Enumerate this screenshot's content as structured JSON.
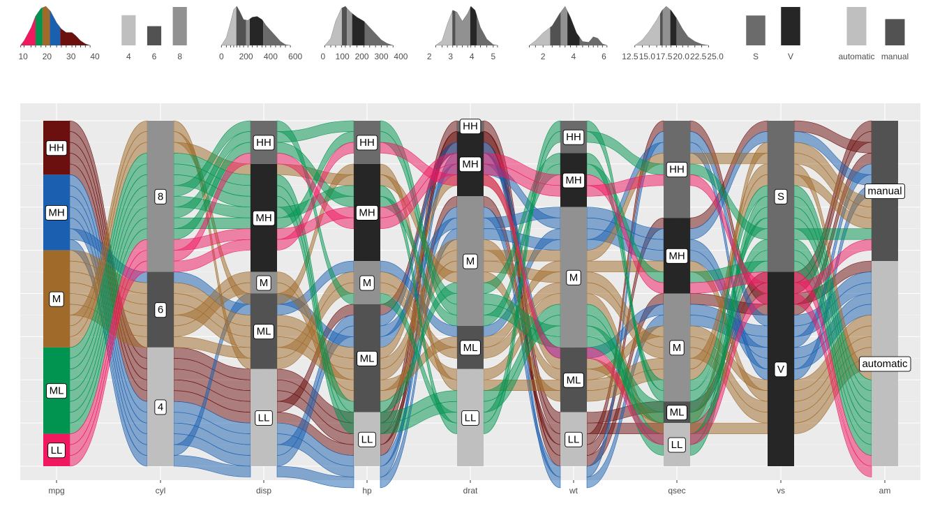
{
  "chart_data": {
    "type": "alluvial",
    "title": "",
    "xlabel": "",
    "ylabel": "",
    "grid": true,
    "background": "#ebebeb",
    "axes": [
      "mpg",
      "cyl",
      "disp",
      "hp",
      "drat",
      "wt",
      "qsec",
      "vs",
      "am"
    ],
    "flow_color_by": "mpg",
    "flow_palette": {
      "HH": "#6b0f0f",
      "MH": "#1a5fb0",
      "M": "#a06a2a",
      "ML": "#009450",
      "LL": "#f0185f"
    },
    "strata": [
      {
        "axis": "mpg",
        "levels": [
          {
            "label": "HH",
            "count": 5,
            "color": "#6b0f0f"
          },
          {
            "label": "MH",
            "count": 7,
            "color": "#1a5fb0"
          },
          {
            "label": "M",
            "count": 9,
            "color": "#a06a2a"
          },
          {
            "label": "ML",
            "count": 8,
            "color": "#009450"
          },
          {
            "label": "LL",
            "count": 3,
            "color": "#f0185f"
          }
        ]
      },
      {
        "axis": "cyl",
        "levels": [
          {
            "label": "8",
            "count": 14,
            "color": "#919191"
          },
          {
            "label": "6",
            "count": 7,
            "color": "#525252"
          },
          {
            "label": "4",
            "count": 11,
            "color": "#bfbfbf"
          }
        ]
      },
      {
        "axis": "disp",
        "levels": [
          {
            "label": "HH",
            "count": 4,
            "color": "#6b6b6b"
          },
          {
            "label": "MH",
            "count": 10,
            "color": "#262626"
          },
          {
            "label": "M",
            "count": 2,
            "color": "#919191"
          },
          {
            "label": "ML",
            "count": 7,
            "color": "#525252"
          },
          {
            "label": "LL",
            "count": 9,
            "color": "#bfbfbf"
          }
        ]
      },
      {
        "axis": "hp",
        "levels": [
          {
            "label": "HH",
            "count": 4,
            "color": "#6b6b6b"
          },
          {
            "label": "MH",
            "count": 9,
            "color": "#262626"
          },
          {
            "label": "M",
            "count": 4,
            "color": "#919191"
          },
          {
            "label": "ML",
            "count": 10,
            "color": "#525252"
          },
          {
            "label": "LL",
            "count": 5,
            "color": "#bfbfbf"
          }
        ]
      },
      {
        "axis": "drat",
        "levels": [
          {
            "label": "HH",
            "count": 1,
            "color": "#6b6b6b"
          },
          {
            "label": "MH",
            "count": 6,
            "color": "#262626"
          },
          {
            "label": "M",
            "count": 12,
            "color": "#919191"
          },
          {
            "label": "ML",
            "count": 4,
            "color": "#525252"
          },
          {
            "label": "LL",
            "count": 9,
            "color": "#bfbfbf"
          }
        ]
      },
      {
        "axis": "wt",
        "levels": [
          {
            "label": "HH",
            "count": 3,
            "color": "#6b6b6b"
          },
          {
            "label": "MH",
            "count": 5,
            "color": "#262626"
          },
          {
            "label": "M",
            "count": 13,
            "color": "#919191"
          },
          {
            "label": "ML",
            "count": 6,
            "color": "#525252"
          },
          {
            "label": "LL",
            "count": 5,
            "color": "#bfbfbf"
          }
        ]
      },
      {
        "axis": "qsec",
        "levels": [
          {
            "label": "HH",
            "count": 9,
            "color": "#6b6b6b"
          },
          {
            "label": "MH",
            "count": 7,
            "color": "#262626"
          },
          {
            "label": "M",
            "count": 10,
            "color": "#919191"
          },
          {
            "label": "ML",
            "count": 2,
            "color": "#525252"
          },
          {
            "label": "LL",
            "count": 4,
            "color": "#bfbfbf"
          }
        ]
      },
      {
        "axis": "vs",
        "levels": [
          {
            "label": "S",
            "count": 14,
            "color": "#6b6b6b"
          },
          {
            "label": "V",
            "count": 18,
            "color": "#262626"
          }
        ]
      },
      {
        "axis": "am",
        "levels": [
          {
            "label": "manual",
            "count": 13,
            "color": "#525252"
          },
          {
            "label": "automatic",
            "count": 19,
            "color": "#bfbfbf"
          }
        ]
      }
    ],
    "marginal_plots": [
      {
        "variable": "mpg",
        "type": "density",
        "ticks": [
          "10",
          "20",
          "30",
          "40"
        ],
        "xlim": [
          5,
          40
        ],
        "tick_values": [
          10,
          20,
          30,
          40
        ],
        "bands": [
          {
            "to": 15.2,
            "color": "#f0185f"
          },
          {
            "to": 18.1,
            "color": "#009450"
          },
          {
            "to": 21.2,
            "color": "#a06a2a"
          },
          {
            "to": 25.5,
            "color": "#1a5fb0"
          },
          {
            "to": 34.5,
            "color": "#6b0f0f"
          }
        ],
        "density": [
          [
            9,
            0.01
          ],
          [
            10.4,
            0.12
          ],
          [
            13.3,
            0.45
          ],
          [
            15.2,
            0.75
          ],
          [
            17.5,
            0.95
          ],
          [
            19.5,
            1.0
          ],
          [
            21.4,
            0.88
          ],
          [
            24,
            0.58
          ],
          [
            26,
            0.42
          ],
          [
            28,
            0.33
          ],
          [
            30.4,
            0.33
          ],
          [
            32,
            0.25
          ],
          [
            34,
            0.12
          ],
          [
            36,
            0.04
          ],
          [
            38,
            0.0
          ]
        ]
      },
      {
        "variable": "cyl",
        "type": "bar",
        "ticks": [
          "4",
          "6",
          "8"
        ],
        "bars": [
          {
            "label": "4",
            "value": 11,
            "color": "#bfbfbf"
          },
          {
            "label": "6",
            "value": 7,
            "color": "#525252"
          },
          {
            "label": "8",
            "value": 14,
            "color": "#919191"
          }
        ]
      },
      {
        "variable": "disp",
        "type": "density",
        "ticks": [
          "0",
          "200",
          "400",
          "600"
        ],
        "xlim": [
          -30,
          650
        ],
        "tick_values": [
          0,
          200,
          400,
          600
        ],
        "bands": [
          {
            "to": 121,
            "color": "#bfbfbf"
          },
          {
            "to": 200,
            "color": "#525252"
          },
          {
            "to": 230,
            "color": "#919191"
          },
          {
            "to": 340,
            "color": "#262626"
          },
          {
            "to": 520,
            "color": "#6b6b6b"
          }
        ],
        "density": [
          [
            0,
            0.0
          ],
          [
            40,
            0.2
          ],
          [
            75,
            0.6
          ],
          [
            100,
            0.92
          ],
          [
            125,
            1.0
          ],
          [
            150,
            0.86
          ],
          [
            180,
            0.66
          ],
          [
            215,
            0.64
          ],
          [
            250,
            0.72
          ],
          [
            290,
            0.74
          ],
          [
            330,
            0.66
          ],
          [
            360,
            0.52
          ],
          [
            400,
            0.38
          ],
          [
            440,
            0.24
          ],
          [
            480,
            0.1
          ],
          [
            520,
            0.02
          ],
          [
            560,
            0.0
          ]
        ]
      },
      {
        "variable": "hp",
        "type": "density",
        "ticks": [
          "0",
          "100",
          "200",
          "300",
          "400"
        ],
        "xlim": [
          -10,
          420
        ],
        "tick_values": [
          0,
          100,
          200,
          300,
          400
        ],
        "bands": [
          {
            "to": 97,
            "color": "#bfbfbf"
          },
          {
            "to": 123,
            "color": "#525252"
          },
          {
            "to": 150,
            "color": "#919191"
          },
          {
            "to": 215,
            "color": "#262626"
          },
          {
            "to": 335,
            "color": "#6b6b6b"
          }
        ],
        "density": [
          [
            10,
            0.0
          ],
          [
            40,
            0.18
          ],
          [
            65,
            0.62
          ],
          [
            95,
            0.95
          ],
          [
            115,
            1.0
          ],
          [
            140,
            0.86
          ],
          [
            175,
            0.72
          ],
          [
            210,
            0.62
          ],
          [
            240,
            0.46
          ],
          [
            270,
            0.3
          ],
          [
            300,
            0.14
          ],
          [
            330,
            0.05
          ],
          [
            360,
            0.0
          ]
        ]
      },
      {
        "variable": "drat",
        "type": "density",
        "ticks": [
          "2",
          "3",
          "4",
          "5"
        ],
        "xlim": [
          1.7,
          5.3
        ],
        "tick_values": [
          2,
          3,
          4,
          5
        ],
        "bands": [
          {
            "to": 3.08,
            "color": "#bfbfbf"
          },
          {
            "to": 3.23,
            "color": "#525252"
          },
          {
            "to": 3.92,
            "color": "#919191"
          },
          {
            "to": 4.22,
            "color": "#262626"
          },
          {
            "to": 4.93,
            "color": "#6b6b6b"
          }
        ],
        "density": [
          [
            2.3,
            0.0
          ],
          [
            2.6,
            0.12
          ],
          [
            2.85,
            0.55
          ],
          [
            3.1,
            0.9
          ],
          [
            3.3,
            0.85
          ],
          [
            3.55,
            0.62
          ],
          [
            3.8,
            0.82
          ],
          [
            3.95,
            1.0
          ],
          [
            4.15,
            0.9
          ],
          [
            4.4,
            0.46
          ],
          [
            4.7,
            0.16
          ],
          [
            5.0,
            0.02
          ],
          [
            5.2,
            0.0
          ]
        ]
      },
      {
        "variable": "wt",
        "type": "density",
        "ticks": [
          "2",
          "4",
          "6"
        ],
        "xlim": [
          0.8,
          6.3
        ],
        "tick_values": [
          2,
          4,
          6
        ],
        "bands": [
          {
            "to": 2.47,
            "color": "#bfbfbf"
          },
          {
            "to": 3.17,
            "color": "#525252"
          },
          {
            "to": 3.6,
            "color": "#919191"
          },
          {
            "to": 4.4,
            "color": "#262626"
          },
          {
            "to": 5.45,
            "color": "#6b6b6b"
          }
        ],
        "density": [
          [
            1.1,
            0.0
          ],
          [
            1.5,
            0.12
          ],
          [
            2.0,
            0.32
          ],
          [
            2.6,
            0.5
          ],
          [
            3.1,
            0.82
          ],
          [
            3.45,
            1.0
          ],
          [
            3.8,
            0.72
          ],
          [
            4.2,
            0.32
          ],
          [
            4.6,
            0.1
          ],
          [
            5.0,
            0.08
          ],
          [
            5.3,
            0.22
          ],
          [
            5.6,
            0.18
          ],
          [
            5.9,
            0.04
          ],
          [
            6.2,
            0.0
          ]
        ]
      },
      {
        "variable": "qsec",
        "type": "density",
        "ticks": [
          "12.5",
          "15.0",
          "17.5",
          "20.0",
          "22.5",
          "25.0"
        ],
        "xlim": [
          12.2,
          25.5
        ],
        "tick_values": [
          12.5,
          15.0,
          17.5,
          20.0,
          22.5,
          25.0
        ],
        "bands": [
          {
            "to": 16.9,
            "color": "#bfbfbf"
          },
          {
            "to": 17.3,
            "color": "#525252"
          },
          {
            "to": 18.4,
            "color": "#919191"
          },
          {
            "to": 19.3,
            "color": "#262626"
          },
          {
            "to": 22.9,
            "color": "#6b6b6b"
          }
        ],
        "density": [
          [
            13.2,
            0.0
          ],
          [
            14.3,
            0.14
          ],
          [
            15.3,
            0.36
          ],
          [
            16.4,
            0.65
          ],
          [
            17.2,
            0.9
          ],
          [
            17.8,
            1.0
          ],
          [
            18.5,
            0.9
          ],
          [
            19.3,
            0.7
          ],
          [
            20.2,
            0.42
          ],
          [
            21.0,
            0.22
          ],
          [
            22.0,
            0.1
          ],
          [
            23.0,
            0.03
          ],
          [
            24.0,
            0.0
          ]
        ]
      },
      {
        "variable": "vs",
        "type": "bar",
        "ticks": [
          "S",
          "V"
        ],
        "bars": [
          {
            "label": "S",
            "value": 14,
            "color": "#6b6b6b"
          },
          {
            "label": "V",
            "value": 18,
            "color": "#262626"
          }
        ]
      },
      {
        "variable": "am",
        "type": "bar",
        "ticks": [
          "automatic",
          "manual"
        ],
        "bars": [
          {
            "label": "automatic",
            "value": 19,
            "color": "#bfbfbf"
          },
          {
            "label": "manual",
            "value": 13,
            "color": "#525252"
          }
        ]
      }
    ]
  }
}
